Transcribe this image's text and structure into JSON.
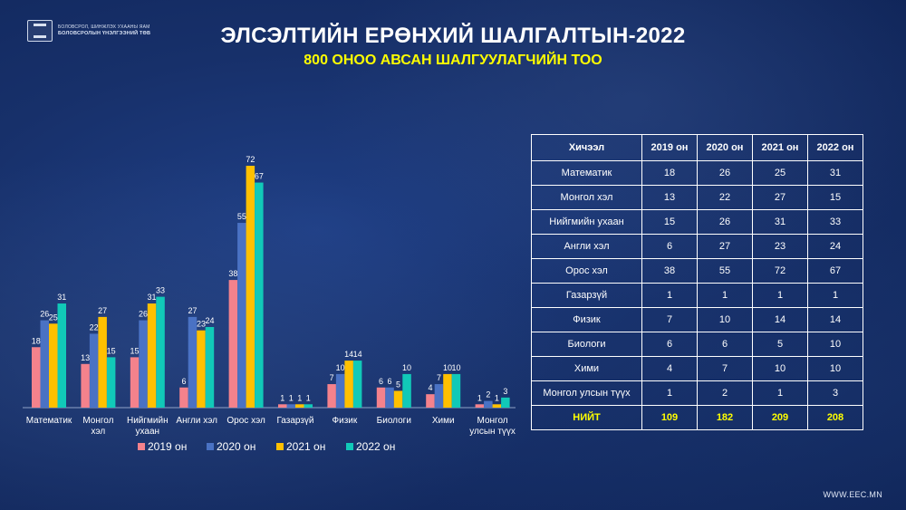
{
  "header": {
    "logo_line1": "БОЛОВСРОЛ, ШИНЖЛЭХ УХААНЫ ЯАМ",
    "logo_line2": "БОЛОВСРОЛЫН ҮНЭЛГЭЭНИЙ ТӨВ",
    "title": "ЭЛСЭЛТИЙН ЕРӨНХИЙ ШАЛГАЛТЫН-2022",
    "subtitle": "800 ОНОО АВСАН ШАЛГУУЛАГЧИЙН ТОО"
  },
  "chart_data": {
    "type": "bar",
    "categories": [
      "Математик",
      "Монгол хэл",
      "Нийгмийн ухаан",
      "Англи хэл",
      "Орос хэл",
      "Газарзүй",
      "Физик",
      "Биологи",
      "Хими",
      "Монгол улсын түүх"
    ],
    "category_lines": [
      [
        "Математик"
      ],
      [
        "Монгол",
        "хэл"
      ],
      [
        "Нийгмийн",
        "ухаан"
      ],
      [
        "Англи хэл"
      ],
      [
        "Орос хэл"
      ],
      [
        "Газарзүй"
      ],
      [
        "Физик"
      ],
      [
        "Биологи"
      ],
      [
        "Хими"
      ],
      [
        "Монгол",
        "улсын түүх"
      ]
    ],
    "series": [
      {
        "name": "2019 он",
        "color": "#f4828c",
        "values": [
          18,
          13,
          15,
          6,
          38,
          1,
          7,
          6,
          4,
          1
        ]
      },
      {
        "name": "2020 он",
        "color": "#4a72c4",
        "values": [
          26,
          22,
          26,
          27,
          55,
          1,
          10,
          6,
          7,
          2
        ]
      },
      {
        "name": "2021 он",
        "color": "#ffc000",
        "values": [
          25,
          27,
          31,
          23,
          72,
          1,
          14,
          5,
          10,
          1
        ]
      },
      {
        "name": "2022 он",
        "color": "#11c9b8",
        "values": [
          31,
          15,
          33,
          24,
          67,
          1,
          14,
          10,
          10,
          3
        ]
      }
    ],
    "ylim": [
      0,
      72
    ],
    "legend": "bottom",
    "grid": false
  },
  "table": {
    "headers": [
      "Хичээл",
      "2019 он",
      "2020 он",
      "2021 он",
      "2022 он"
    ],
    "rows": [
      [
        "Математик",
        "18",
        "26",
        "25",
        "31"
      ],
      [
        "Монгол хэл",
        "13",
        "22",
        "27",
        "15"
      ],
      [
        "Нийгмийн ухаан",
        "15",
        "26",
        "31",
        "33"
      ],
      [
        "Англи хэл",
        "6",
        "27",
        "23",
        "24"
      ],
      [
        "Орос хэл",
        "38",
        "55",
        "72",
        "67"
      ],
      [
        "Газарзүй",
        "1",
        "1",
        "1",
        "1"
      ],
      [
        "Физик",
        "7",
        "10",
        "14",
        "14"
      ],
      [
        "Биологи",
        "6",
        "6",
        "5",
        "10"
      ],
      [
        "Хими",
        "4",
        "7",
        "10",
        "10"
      ],
      [
        "Монгол улсын түүх",
        "1",
        "2",
        "1",
        "3"
      ]
    ],
    "total": [
      "НИЙТ",
      "109",
      "182",
      "209",
      "208"
    ]
  },
  "footer": {
    "url": "WWW.EEC.MN"
  }
}
